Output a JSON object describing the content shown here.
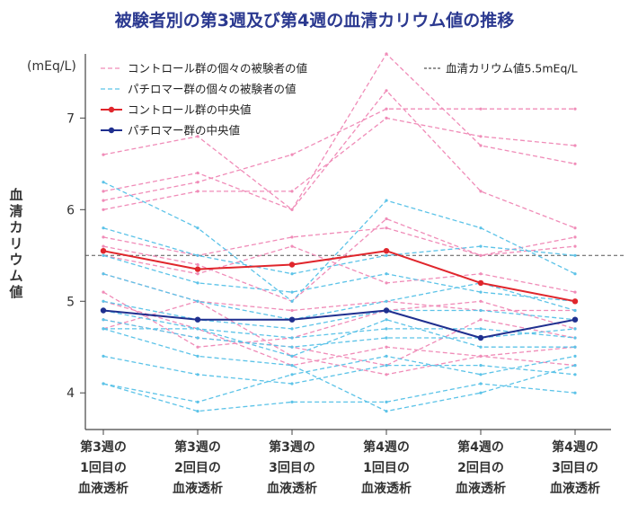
{
  "chart_data": {
    "type": "line",
    "title": "被験者別の第3週及び第4週の血清カリウム値の推移",
    "ylabel_chars": [
      "血",
      "清",
      "カ",
      "リ",
      "ウ",
      "ム",
      "値"
    ],
    "yunit": "(mEq/L)",
    "ylim": [
      3.6,
      7.7
    ],
    "yticks": [
      4,
      5,
      6,
      7
    ],
    "categories": [
      [
        "第3週の",
        "1回目の",
        "血液透析"
      ],
      [
        "第3週の",
        "2回目の",
        "血液透析"
      ],
      [
        "第3週の",
        "3回目の",
        "血液透析"
      ],
      [
        "第4週の",
        "1回目の",
        "血液透析"
      ],
      [
        "第4週の",
        "2回目の",
        "血液透析"
      ],
      [
        "第4週の",
        "3回目の",
        "血液透析"
      ]
    ],
    "reference_line": {
      "value": 5.5,
      "label": "血清カリウム値5.5mEq/L"
    },
    "legend": {
      "placement": "top",
      "control_individual": "コントロール群の個々の被験者の値",
      "patiromer_individual": "パチロマー群の個々の被験者の値",
      "control_median": "コントロール群の中央値",
      "patiromer_median": "パチロマー群の中央値"
    },
    "colors": {
      "control_individual": "#f08cb8",
      "patiromer_individual": "#5cc3e8",
      "control_median": "#e0262c",
      "patiromer_median": "#1f2f8f",
      "reference": "#555555",
      "title": "#2b3990"
    },
    "control_median": [
      5.55,
      5.35,
      5.4,
      5.55,
      5.2,
      5.0
    ],
    "patiromer_median": [
      4.9,
      4.8,
      4.8,
      4.9,
      4.6,
      4.8
    ],
    "control_individual": [
      [
        6.6,
        6.8,
        6.0,
        7.7,
        6.7,
        6.5
      ],
      [
        6.2,
        6.4,
        6.0,
        7.3,
        6.2,
        5.8
      ],
      [
        6.1,
        6.3,
        6.6,
        7.1,
        7.1,
        7.1
      ],
      [
        6.0,
        6.2,
        6.2,
        7.0,
        6.8,
        6.7
      ],
      [
        5.7,
        5.5,
        5.7,
        5.8,
        5.5,
        5.7
      ],
      [
        5.6,
        5.4,
        5.0,
        5.9,
        5.5,
        5.6
      ],
      [
        5.5,
        5.3,
        5.6,
        5.2,
        5.3,
        5.1
      ],
      [
        5.3,
        5.0,
        4.9,
        5.0,
        4.9,
        4.9
      ],
      [
        5.1,
        4.5,
        4.6,
        4.9,
        5.0,
        4.7
      ],
      [
        5.0,
        4.7,
        4.3,
        4.5,
        4.4,
        4.3
      ],
      [
        4.8,
        4.6,
        4.5,
        4.3,
        4.8,
        4.6
      ],
      [
        4.7,
        5.0,
        4.4,
        4.2,
        4.4,
        4.5
      ]
    ],
    "patiromer_individual": [
      [
        6.3,
        5.8,
        5.0,
        6.1,
        5.8,
        5.3
      ],
      [
        5.8,
        5.5,
        5.3,
        5.5,
        5.6,
        5.5
      ],
      [
        5.5,
        5.2,
        5.1,
        5.3,
        5.1,
        5.0
      ],
      [
        5.3,
        5.0,
        4.8,
        5.0,
        5.2,
        4.9
      ],
      [
        5.0,
        4.8,
        4.7,
        4.9,
        4.9,
        4.8
      ],
      [
        4.9,
        4.7,
        4.6,
        4.7,
        4.7,
        4.6
      ],
      [
        4.8,
        4.6,
        4.5,
        4.6,
        4.6,
        4.7
      ],
      [
        4.7,
        4.7,
        4.4,
        4.8,
        4.5,
        4.5
      ],
      [
        4.4,
        4.2,
        4.1,
        4.3,
        4.3,
        4.2
      ],
      [
        4.1,
        3.9,
        4.2,
        4.4,
        4.2,
        4.4
      ],
      [
        4.1,
        3.8,
        3.9,
        3.9,
        4.1,
        4.0
      ],
      [
        4.7,
        4.4,
        4.3,
        3.8,
        4.0,
        4.3
      ]
    ]
  }
}
